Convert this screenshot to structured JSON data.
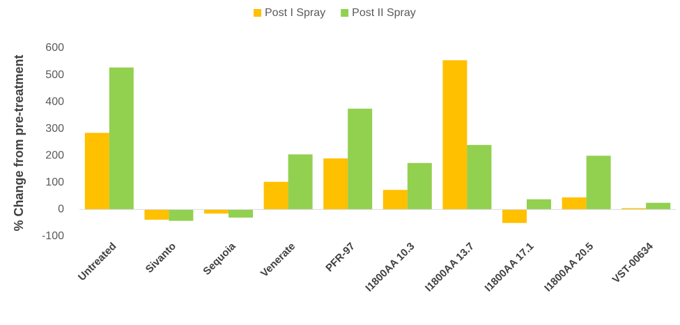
{
  "chart_data": {
    "type": "bar",
    "y_label": "% Change from pre-treatment",
    "categories": [
      "Untreated",
      "Sivanto",
      "Sequoia",
      "Venerate",
      "PFR-97",
      "I1800AA 10.3",
      "I1800AA 13.7",
      "I1800AA 17.1",
      "I1800AA 20.5",
      "VST-00634"
    ],
    "series": [
      {
        "name": "Post I Spray",
        "color": "#FFC000",
        "values": [
          285,
          -38,
          -15,
          103,
          190,
          73,
          555,
          -50,
          45,
          5
        ]
      },
      {
        "name": "Post II Spray",
        "color": "#92D050",
        "values": [
          528,
          -42,
          -30,
          205,
          375,
          173,
          240,
          38,
          200,
          25
        ]
      }
    ],
    "ylim": [
      -100,
      600
    ],
    "yticks": [
      -100,
      0,
      100,
      200,
      300,
      400,
      500,
      600
    ],
    "grid": false,
    "legend": "top"
  }
}
